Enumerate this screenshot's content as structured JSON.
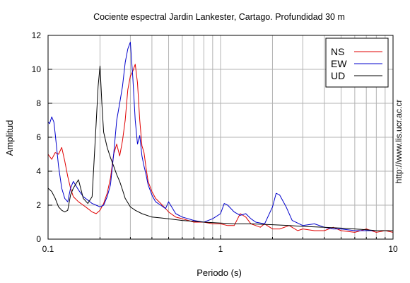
{
  "chart_data": {
    "type": "line",
    "title": "Cociente espectral Jardin Lankester, Cartago. Profundidad 30 m",
    "xlabel": "Periodo (s)",
    "ylabel": "Amplitud",
    "xscale": "log",
    "xlim": [
      0.1,
      10
    ],
    "ylim": [
      0,
      12
    ],
    "x_ticks": [
      0.1,
      1,
      10
    ],
    "x_tick_labels": [
      "0.1",
      "1",
      "10"
    ],
    "y_ticks": [
      0,
      2,
      4,
      6,
      8,
      10,
      12
    ],
    "y_tick_labels": [
      "0",
      "2",
      "4",
      "6",
      "8",
      "10",
      "12"
    ],
    "grid": true,
    "legend_position": "top-right",
    "watermark": "http://www.lis.ucr.ac.cr",
    "series": [
      {
        "name": "NS",
        "color": "#e00000",
        "x": [
          0.1,
          0.105,
          0.11,
          0.115,
          0.12,
          0.125,
          0.13,
          0.135,
          0.14,
          0.15,
          0.16,
          0.17,
          0.18,
          0.19,
          0.2,
          0.21,
          0.22,
          0.23,
          0.24,
          0.25,
          0.26,
          0.27,
          0.28,
          0.29,
          0.3,
          0.31,
          0.32,
          0.33,
          0.34,
          0.35,
          0.36,
          0.37,
          0.38,
          0.4,
          0.42,
          0.45,
          0.48,
          0.5,
          0.55,
          0.6,
          0.65,
          0.7,
          0.8,
          0.9,
          1.0,
          1.1,
          1.2,
          1.3,
          1.4,
          1.5,
          1.6,
          1.7,
          1.8,
          2.0,
          2.2,
          2.5,
          2.8,
          3.0,
          3.5,
          4.0,
          4.5,
          5.0,
          6.0,
          7.0,
          8.0,
          9.0,
          10.0
        ],
        "y": [
          5.0,
          4.7,
          5.1,
          5.0,
          5.4,
          4.6,
          3.7,
          3.0,
          2.5,
          2.2,
          2.0,
          1.8,
          1.6,
          1.5,
          1.7,
          2.1,
          2.7,
          3.6,
          5.0,
          5.6,
          4.9,
          5.8,
          7.0,
          8.8,
          9.6,
          9.9,
          10.3,
          9.2,
          7.0,
          5.5,
          5.1,
          4.2,
          3.4,
          2.8,
          2.4,
          2.1,
          1.8,
          1.6,
          1.3,
          1.2,
          1.1,
          1.0,
          1.0,
          0.9,
          0.9,
          0.8,
          0.8,
          1.5,
          1.3,
          0.9,
          0.8,
          0.7,
          0.9,
          0.6,
          0.6,
          0.8,
          0.5,
          0.6,
          0.5,
          0.5,
          0.7,
          0.5,
          0.4,
          0.6,
          0.4,
          0.5,
          0.4
        ]
      },
      {
        "name": "EW",
        "color": "#0000cc",
        "x": [
          0.1,
          0.102,
          0.105,
          0.108,
          0.11,
          0.115,
          0.12,
          0.125,
          0.13,
          0.135,
          0.14,
          0.15,
          0.16,
          0.17,
          0.18,
          0.19,
          0.2,
          0.21,
          0.22,
          0.23,
          0.24,
          0.25,
          0.26,
          0.27,
          0.28,
          0.29,
          0.3,
          0.31,
          0.32,
          0.33,
          0.34,
          0.35,
          0.36,
          0.37,
          0.38,
          0.4,
          0.42,
          0.45,
          0.48,
          0.5,
          0.55,
          0.6,
          0.65,
          0.7,
          0.8,
          0.9,
          1.0,
          1.05,
          1.1,
          1.2,
          1.3,
          1.4,
          1.5,
          1.6,
          1.8,
          2.0,
          2.1,
          2.2,
          2.4,
          2.6,
          3.0,
          3.5,
          4.0,
          4.5,
          5.0,
          6.0,
          7.0,
          8.0,
          9.0,
          10.0
        ],
        "y": [
          6.9,
          6.8,
          7.2,
          6.9,
          6.2,
          4.3,
          3.0,
          2.4,
          2.2,
          3.0,
          3.4,
          2.9,
          2.5,
          2.3,
          2.1,
          2.0,
          1.9,
          2.0,
          2.5,
          3.2,
          5.0,
          7.0,
          8.0,
          9.0,
          10.4,
          11.2,
          11.6,
          9.5,
          7.0,
          5.6,
          6.1,
          4.9,
          4.3,
          3.8,
          3.2,
          2.6,
          2.2,
          2.0,
          1.8,
          2.2,
          1.5,
          1.3,
          1.2,
          1.1,
          1.0,
          1.2,
          1.5,
          2.1,
          2.0,
          1.6,
          1.4,
          1.5,
          1.2,
          1.0,
          0.9,
          1.9,
          2.7,
          2.6,
          1.9,
          1.1,
          0.8,
          0.9,
          0.7,
          0.6,
          0.6,
          0.5,
          0.5,
          0.5,
          0.5,
          0.5
        ]
      },
      {
        "name": "UD",
        "color": "#000000",
        "x": [
          0.1,
          0.105,
          0.11,
          0.115,
          0.12,
          0.125,
          0.13,
          0.135,
          0.14,
          0.15,
          0.16,
          0.17,
          0.18,
          0.19,
          0.195,
          0.2,
          0.205,
          0.21,
          0.22,
          0.23,
          0.24,
          0.25,
          0.26,
          0.27,
          0.28,
          0.3,
          0.32,
          0.35,
          0.4,
          0.45,
          0.5,
          0.6,
          0.7,
          0.8,
          1.0,
          1.2,
          1.5,
          2.0,
          2.5,
          3.0,
          4.0,
          5.0,
          6.0,
          7.0,
          8.0,
          9.0,
          10.0
        ],
        "y": [
          3.0,
          2.8,
          2.4,
          1.9,
          1.7,
          1.6,
          1.7,
          2.6,
          3.0,
          3.5,
          2.4,
          2.1,
          2.5,
          6.8,
          9.0,
          10.2,
          8.0,
          6.3,
          5.4,
          4.8,
          4.3,
          3.8,
          3.4,
          2.9,
          2.4,
          1.9,
          1.7,
          1.5,
          1.3,
          1.25,
          1.2,
          1.1,
          1.05,
          1.0,
          0.95,
          0.9,
          0.9,
          0.85,
          0.8,
          0.75,
          0.7,
          0.65,
          0.6,
          0.55,
          0.5,
          0.5,
          0.5
        ]
      }
    ]
  }
}
